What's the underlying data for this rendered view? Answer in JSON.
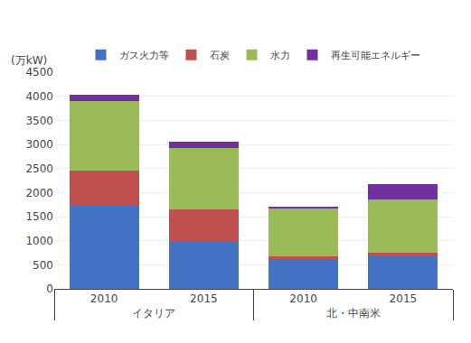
{
  "chart_data": {
    "type": "bar",
    "ylabel": "(万kW)",
    "categories": [
      "2010",
      "2015",
      "2010",
      "2015"
    ],
    "groups": [
      "イタリア",
      "イタリア",
      "北・中南米",
      "北・中南米"
    ],
    "series": [
      {
        "name": "ガス火力等",
        "color": "#4472C4",
        "values": [
          1750,
          1000,
          620,
          670
        ]
      },
      {
        "name": "石炭",
        "color": "#C0504D",
        "values": [
          700,
          650,
          60,
          80
        ]
      },
      {
        "name": "水力",
        "color": "#9BBB59",
        "values": [
          1450,
          1280,
          1000,
          1100
        ]
      },
      {
        "name": "再生可能エネルギー",
        "color": "#7030A0",
        "values": [
          130,
          130,
          30,
          330
        ]
      }
    ],
    "stacked": true,
    "ylim": [
      0,
      4500
    ],
    "yticks": [
      0,
      500,
      1000,
      1500,
      2000,
      2500,
      3000,
      3500,
      4000,
      4500
    ],
    "grid": true,
    "legend": "top"
  }
}
